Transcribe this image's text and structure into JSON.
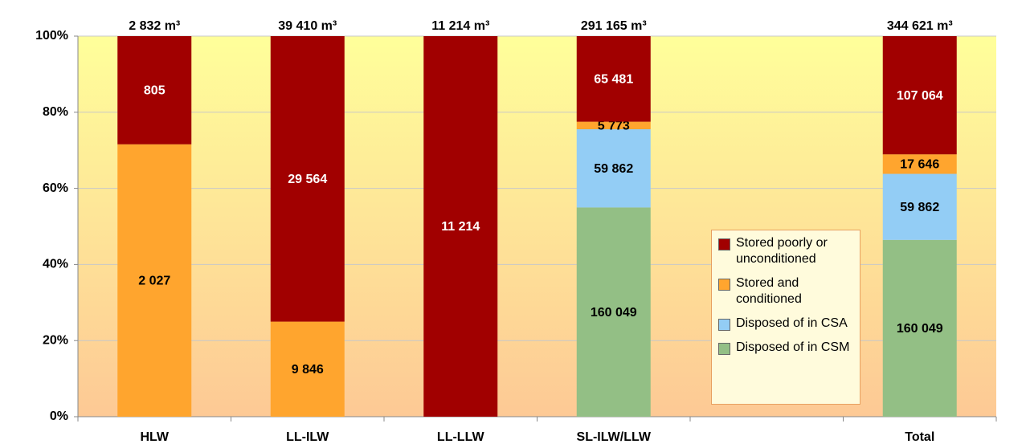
{
  "chart_data": {
    "type": "bar",
    "stacking": "percent",
    "categories": [
      "HLW",
      "LL-ILW",
      "LL-LLW",
      "SL-ILW/LLW",
      null,
      "Total"
    ],
    "series": [
      {
        "name": "Disposed of in CSM",
        "color": "#93bf85",
        "label_color": "#000000",
        "values": [
          null,
          null,
          null,
          160049,
          null,
          160049
        ],
        "value_labels": [
          null,
          null,
          null,
          "160 049",
          null,
          "160 049"
        ]
      },
      {
        "name": "Disposed of in CSA",
        "color": "#93cdf5",
        "label_color": "#000000",
        "values": [
          null,
          null,
          null,
          59862,
          null,
          59862
        ],
        "value_labels": [
          null,
          null,
          null,
          "59 862",
          null,
          "59 862"
        ]
      },
      {
        "name": "Stored and conditioned",
        "color": "#ffa52e",
        "label_color": "#000000",
        "values": [
          2027,
          9846,
          null,
          5773,
          null,
          17646
        ],
        "value_labels": [
          "2 027",
          "9 846",
          null,
          "5 773",
          null,
          "17 646"
        ]
      },
      {
        "name": "Stored poorly or unconditioned",
        "color": "#a10000",
        "label_color": "#ffffff",
        "values": [
          805,
          29564,
          11214,
          65481,
          null,
          107064
        ],
        "value_labels": [
          "805",
          "29 564",
          "11 214",
          "65 481",
          null,
          "107 064"
        ]
      }
    ],
    "totals": {
      "values": [
        2832,
        39410,
        11214,
        291165,
        null,
        344621
      ],
      "value_labels": [
        "2 832 m³",
        "39 410 m³",
        "11 214 m³",
        "291 165 m³",
        null,
        "344 621 m³"
      ]
    },
    "ylim": [
      0,
      100
    ],
    "yticks": [
      {
        "value": 0,
        "label": "0%"
      },
      {
        "value": 20,
        "label": "20%"
      },
      {
        "value": 40,
        "label": "40%"
      },
      {
        "value": 60,
        "label": "60%"
      },
      {
        "value": 80,
        "label": "80%"
      },
      {
        "value": 100,
        "label": "100%"
      }
    ],
    "grid": true
  }
}
